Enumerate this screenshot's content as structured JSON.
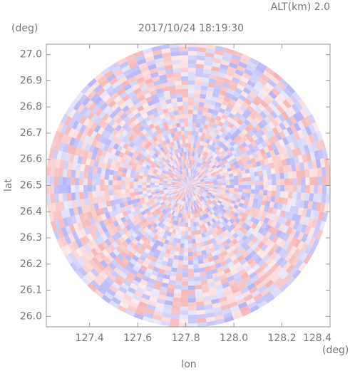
{
  "chart_data": {
    "type": "ppi",
    "title": "2017/10/24 18:19:30",
    "subtitle": "ALT(km) 2.0",
    "x_label": "lon",
    "x_unit": "(deg)",
    "y_label": "lat",
    "y_unit": "(deg)",
    "xlim": [
      127.22,
      128.4
    ],
    "ylim": [
      25.96,
      27.04
    ],
    "xticks": [
      127.4,
      127.6,
      127.8,
      {
        "value": 128.0,
        "label": "128.0"
      },
      128.2,
      128.4
    ],
    "yticks": [
      {
        "value": 26.0,
        "label": "26.0"
      },
      26.1,
      26.2,
      26.3,
      26.4,
      26.5,
      26.6,
      26.7,
      26.8,
      26.9,
      {
        "value": 27.0,
        "label": "27.0"
      }
    ]
  }
}
